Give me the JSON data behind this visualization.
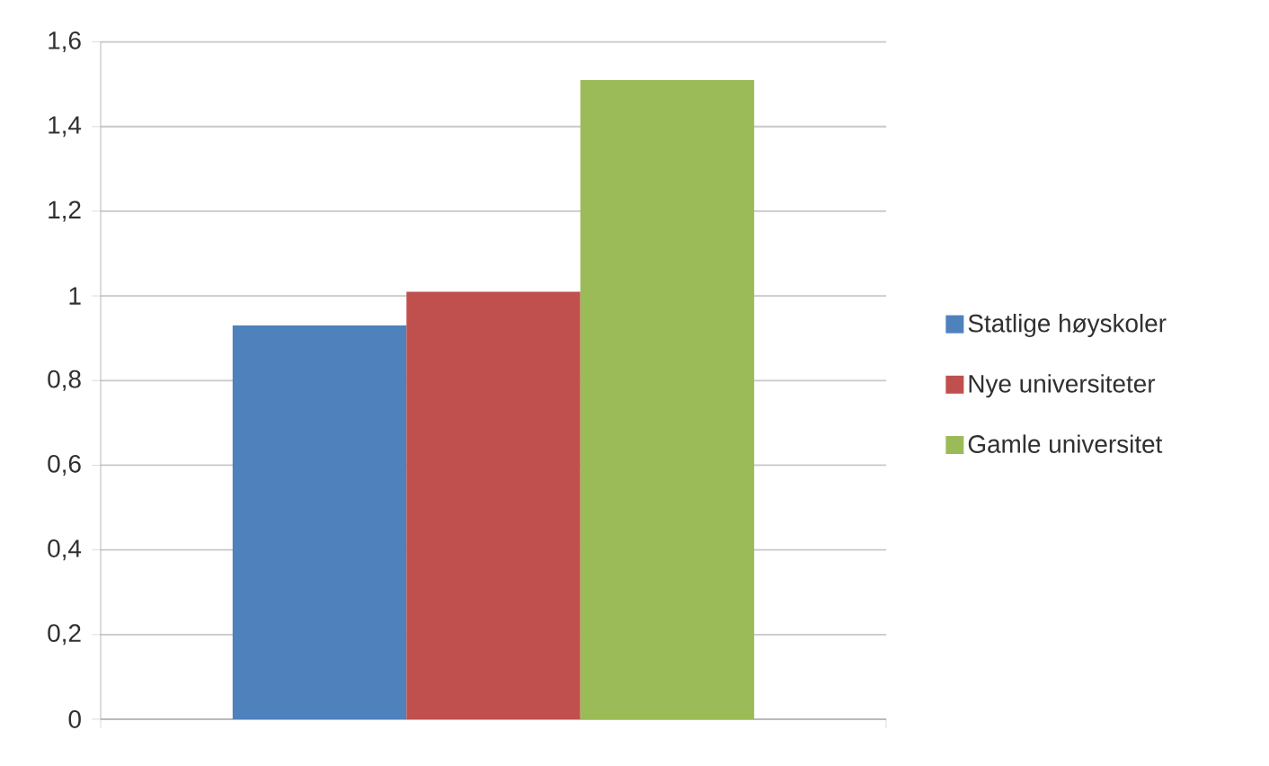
{
  "chart_data": {
    "type": "bar",
    "categories": [
      null
    ],
    "series": [
      {
        "name": "Statlige høyskoler",
        "color": "#4f81bd",
        "values": [
          0.93
        ]
      },
      {
        "name": "Nye universiteter",
        "color": "#c0504d",
        "values": [
          1.01
        ]
      },
      {
        "name": "Gamle universitet",
        "color": "#9bbb59",
        "values": [
          1.51
        ]
      }
    ],
    "ylim": [
      0,
      1.6
    ],
    "yticks": [
      0,
      {
        "value": 0.2,
        "label": "0,2"
      },
      {
        "value": 0.4,
        "label": "0,4"
      },
      {
        "value": 0.6,
        "label": "0,6"
      },
      {
        "value": 0.8,
        "label": "0,8"
      },
      1,
      {
        "value": 1.2,
        "label": "1,2"
      },
      {
        "value": 1.4,
        "label": "1,4"
      },
      {
        "value": 1.6,
        "label": "1,6"
      }
    ],
    "grid": "y",
    "legend": "right"
  }
}
